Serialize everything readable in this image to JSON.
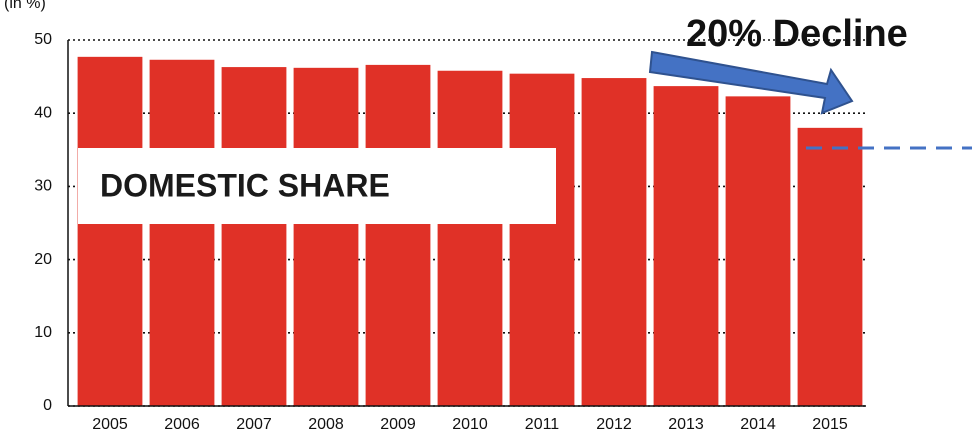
{
  "chart_data": {
    "type": "bar",
    "ylabel": "(in %)",
    "categories": [
      "2005",
      "2006",
      "2007",
      "2008",
      "2009",
      "2010",
      "2011",
      "2012",
      "2013",
      "2014",
      "2015"
    ],
    "values": [
      47.7,
      47.3,
      46.3,
      46.2,
      46.6,
      45.8,
      45.4,
      44.8,
      43.7,
      42.3,
      38.0
    ],
    "color": "#e03127",
    "ylim": [
      0,
      50
    ],
    "yticks": [
      0,
      10,
      20,
      30,
      40,
      50
    ],
    "grid": true,
    "annotations": [
      "20% Decline",
      "DOMESTIC SHARE"
    ]
  }
}
